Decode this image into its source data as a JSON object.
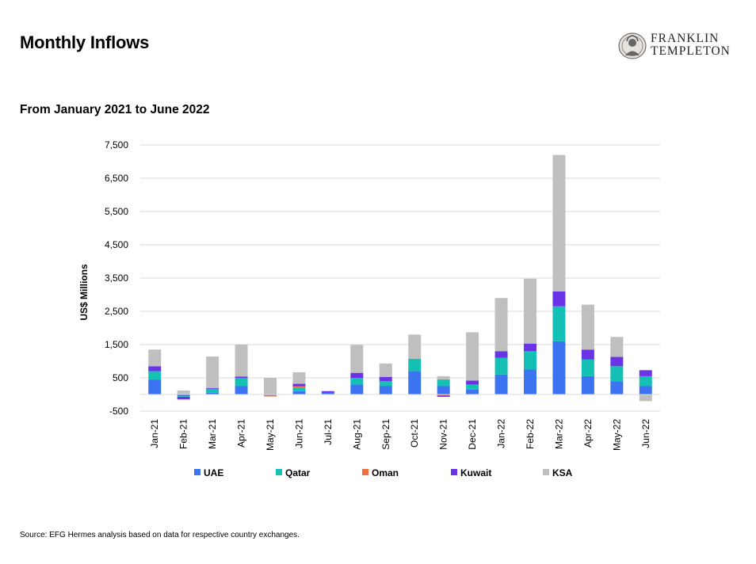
{
  "header": {
    "title": "Monthly Inflows",
    "subtitle": "From January 2021 to June 2022"
  },
  "logo": {
    "line1": "FRANKLIN",
    "line2": "TEMPLETON"
  },
  "footer": {
    "source": "Source: EFG Hermes analysis based on data for respective country exchanges."
  },
  "chart_data": {
    "type": "bar",
    "stacked": true,
    "categories": [
      "Jan-21",
      "Feb-21",
      "Mar-21",
      "Apr-21",
      "May-21",
      "Jun-21",
      "Jul-21",
      "Aug-21",
      "Sep-21",
      "Oct-21",
      "Nov-21",
      "Dec-21",
      "Jan-22",
      "Feb-22",
      "Mar-22",
      "Apr-22",
      "May-22",
      "Jun-22"
    ],
    "ylabel": "US$ Millions",
    "ylim": [
      -500,
      7500
    ],
    "yticks": [
      -500,
      500,
      1500,
      2500,
      3500,
      4500,
      5500,
      6500,
      7500
    ],
    "ytick_labels": [
      "-500",
      "500",
      "1,500",
      "2,500",
      "3,500",
      "4,500",
      "5,500",
      "6,500",
      "7,500"
    ],
    "grid": true,
    "legend_position": "bottom",
    "series": [
      {
        "name": "UAE",
        "color": "#3b73f0",
        "values": [
          450,
          -50,
          50,
          250,
          -20,
          100,
          50,
          300,
          250,
          700,
          250,
          150,
          600,
          750,
          1600,
          550,
          400,
          250
        ]
      },
      {
        "name": "Qatar",
        "color": "#14c0b4",
        "values": [
          250,
          -20,
          120,
          250,
          0,
          100,
          0,
          200,
          150,
          350,
          200,
          150,
          500,
          550,
          1050,
          500,
          450,
          300
        ]
      },
      {
        "name": "Oman",
        "color": "#f0703c",
        "values": [
          0,
          0,
          0,
          0,
          -40,
          50,
          0,
          0,
          0,
          0,
          -30,
          0,
          0,
          0,
          0,
          0,
          0,
          0
        ]
      },
      {
        "name": "Kuwait",
        "color": "#6a33e6",
        "values": [
          150,
          -80,
          20,
          40,
          0,
          70,
          50,
          150,
          130,
          10,
          -40,
          120,
          200,
          230,
          450,
          300,
          280,
          180
        ]
      },
      {
        "name": "KSA",
        "color": "#bfbfbf",
        "values": [
          500,
          120,
          950,
          960,
          500,
          350,
          0,
          840,
          400,
          740,
          100,
          1450,
          1600,
          1950,
          4100,
          1350,
          600,
          -200
        ]
      }
    ]
  }
}
